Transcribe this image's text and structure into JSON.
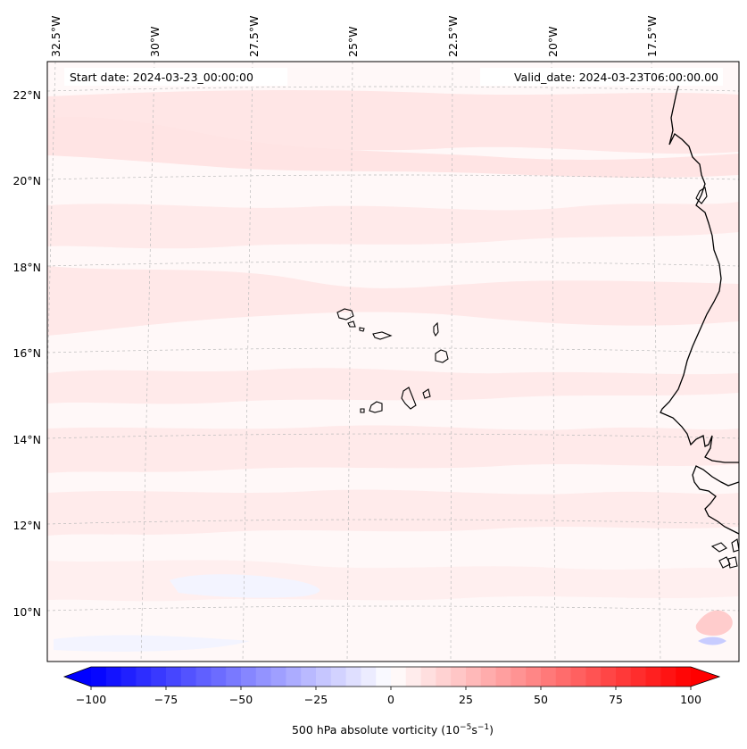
{
  "annotations": {
    "start_date": "Start date: 2024-03-23_00:00:00",
    "valid_date": "Valid_date: 2024-03-23T06:00:00.00"
  },
  "map": {
    "longitude_labels": [
      "32.5°W",
      "30°W",
      "27.5°W",
      "25°W",
      "22.5°W",
      "20°W",
      "17.5°W"
    ],
    "latitude_labels": [
      "22°N",
      "20°N",
      "18°N",
      "16°N",
      "14°N",
      "12°N",
      "10°N"
    ],
    "field": "500 hPa absolute vorticity",
    "coastline_color": "#000000",
    "gridline_color": "#bbbbbb"
  },
  "colorbar": {
    "label_text": "500 hPa absolute vorticity (10",
    "label_exp1": "−5",
    "label_mid": "s",
    "label_exp2": "−1",
    "label_close": ")",
    "ticks": [
      "−100",
      "−75",
      "−50",
      "−25",
      "0",
      "25",
      "50",
      "75",
      "100"
    ],
    "min": -100,
    "max": 100,
    "step": 5,
    "colormap": "bwr",
    "extend": "both",
    "color_low": "#0000ff",
    "color_mid": "#ffffff",
    "color_high": "#ff0000"
  }
}
